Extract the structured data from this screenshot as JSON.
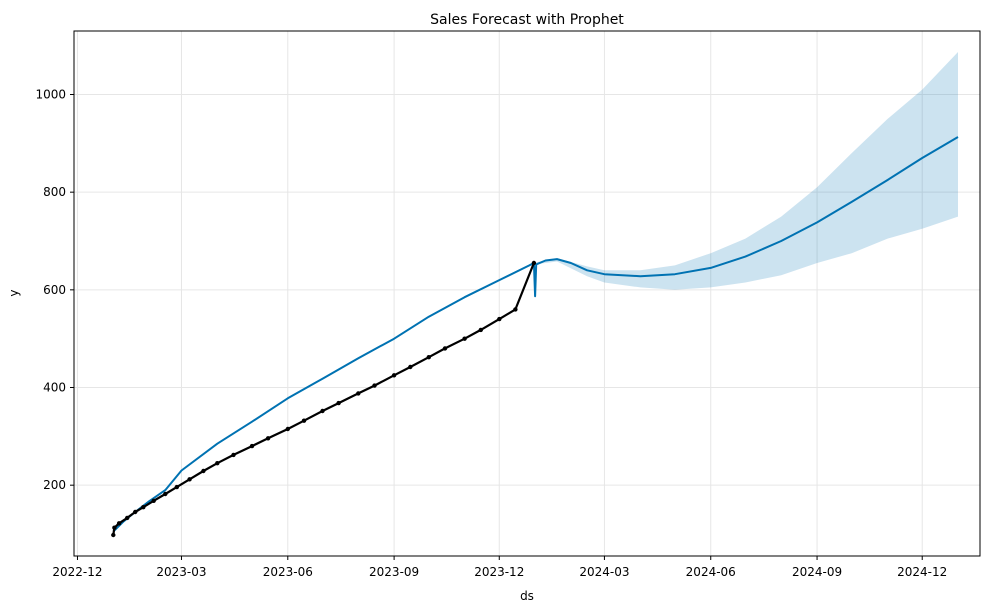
{
  "chart_data": {
    "type": "line",
    "title": "Sales Forecast with Prophet",
    "xlabel": "ds",
    "ylabel": "y",
    "grid": true,
    "legend": "none",
    "xlim": [
      "2022-11-28",
      "2025-01-20"
    ],
    "ylim": [
      55,
      1130
    ],
    "x_ticks": [
      "2022-12",
      "2023-03",
      "2023-06",
      "2023-09",
      "2023-12",
      "2024-03",
      "2024-06",
      "2024-09",
      "2024-12"
    ],
    "y_ticks": [
      "200",
      "400",
      "600",
      "800",
      "1000"
    ],
    "colors": {
      "forecast_line": "#0072b2",
      "uncertainty_band": "#0072b2",
      "observed_points": "#000000",
      "grid": "#e6e6e6"
    },
    "observed_range": [
      "2023-01-01",
      "2023-12-31"
    ],
    "series": [
      {
        "name": "yhat",
        "kind": "line",
        "points": [
          [
            "2023-01-01",
            105
          ],
          [
            "2023-01-10",
            126
          ],
          [
            "2023-01-20",
            145
          ],
          [
            "2023-02-01",
            167
          ],
          [
            "2023-02-15",
            190
          ],
          [
            "2023-03-01",
            230
          ],
          [
            "2023-04-01",
            285
          ],
          [
            "2023-05-01",
            330
          ],
          [
            "2023-06-01",
            378
          ],
          [
            "2023-07-01",
            418
          ],
          [
            "2023-08-01",
            460
          ],
          [
            "2023-09-01",
            500
          ],
          [
            "2023-10-01",
            545
          ],
          [
            "2023-11-01",
            585
          ],
          [
            "2023-12-01",
            620
          ],
          [
            "2023-12-27",
            650
          ],
          [
            "2023-12-31",
            655
          ],
          [
            "2024-01-01",
            587
          ],
          [
            "2024-01-02",
            652
          ],
          [
            "2024-01-10",
            660
          ],
          [
            "2024-01-20",
            663
          ],
          [
            "2024-02-01",
            655
          ],
          [
            "2024-02-15",
            640
          ],
          [
            "2024-03-01",
            632
          ],
          [
            "2024-04-01",
            628
          ],
          [
            "2024-05-01",
            632
          ],
          [
            "2024-06-01",
            645
          ],
          [
            "2024-07-01",
            668
          ],
          [
            "2024-08-01",
            700
          ],
          [
            "2024-09-01",
            738
          ],
          [
            "2024-10-01",
            780
          ],
          [
            "2024-11-01",
            825
          ],
          [
            "2024-12-01",
            870
          ],
          [
            "2025-01-01",
            913
          ]
        ]
      },
      {
        "name": "actual",
        "kind": "scatter",
        "points": [
          [
            "2023-01-01",
            98
          ],
          [
            "2023-01-02",
            113
          ],
          [
            "2023-01-06",
            122
          ],
          [
            "2023-01-13",
            133
          ],
          [
            "2023-01-20",
            145
          ],
          [
            "2023-01-27",
            155
          ],
          [
            "2023-02-05",
            168
          ],
          [
            "2023-02-15",
            182
          ],
          [
            "2023-02-25",
            196
          ],
          [
            "2023-03-08",
            212
          ],
          [
            "2023-03-20",
            229
          ],
          [
            "2023-04-01",
            245
          ],
          [
            "2023-04-15",
            262
          ],
          [
            "2023-05-01",
            280
          ],
          [
            "2023-05-15",
            296
          ],
          [
            "2023-06-01",
            315
          ],
          [
            "2023-06-15",
            332
          ],
          [
            "2023-07-01",
            352
          ],
          [
            "2023-07-15",
            368
          ],
          [
            "2023-08-01",
            388
          ],
          [
            "2023-08-15",
            404
          ],
          [
            "2023-09-01",
            425
          ],
          [
            "2023-09-15",
            442
          ],
          [
            "2023-10-01",
            462
          ],
          [
            "2023-10-15",
            480
          ],
          [
            "2023-11-01",
            500
          ],
          [
            "2023-11-15",
            518
          ],
          [
            "2023-12-01",
            540
          ],
          [
            "2023-12-15",
            560
          ],
          [
            "2023-12-31",
            655
          ]
        ]
      },
      {
        "name": "yhat_upper",
        "kind": "band",
        "points": [
          [
            "2024-01-01",
            656
          ],
          [
            "2024-01-20",
            665
          ],
          [
            "2024-02-15",
            648
          ],
          [
            "2024-03-01",
            640
          ],
          [
            "2024-04-01",
            640
          ],
          [
            "2024-05-01",
            650
          ],
          [
            "2024-06-01",
            675
          ],
          [
            "2024-07-01",
            705
          ],
          [
            "2024-08-01",
            750
          ],
          [
            "2024-09-01",
            810
          ],
          [
            "2024-10-01",
            880
          ],
          [
            "2024-11-01",
            950
          ],
          [
            "2024-12-01",
            1010
          ],
          [
            "2025-01-01",
            1087
          ]
        ]
      },
      {
        "name": "yhat_lower",
        "kind": "band",
        "points": [
          [
            "2024-01-01",
            652
          ],
          [
            "2024-01-20",
            658
          ],
          [
            "2024-02-15",
            628
          ],
          [
            "2024-03-01",
            615
          ],
          [
            "2024-04-01",
            605
          ],
          [
            "2024-05-01",
            600
          ],
          [
            "2024-06-01",
            605
          ],
          [
            "2024-07-01",
            615
          ],
          [
            "2024-08-01",
            630
          ],
          [
            "2024-09-01",
            655
          ],
          [
            "2024-10-01",
            675
          ],
          [
            "2024-11-01",
            705
          ],
          [
            "2024-12-01",
            725
          ],
          [
            "2025-01-01",
            750
          ]
        ]
      }
    ]
  }
}
